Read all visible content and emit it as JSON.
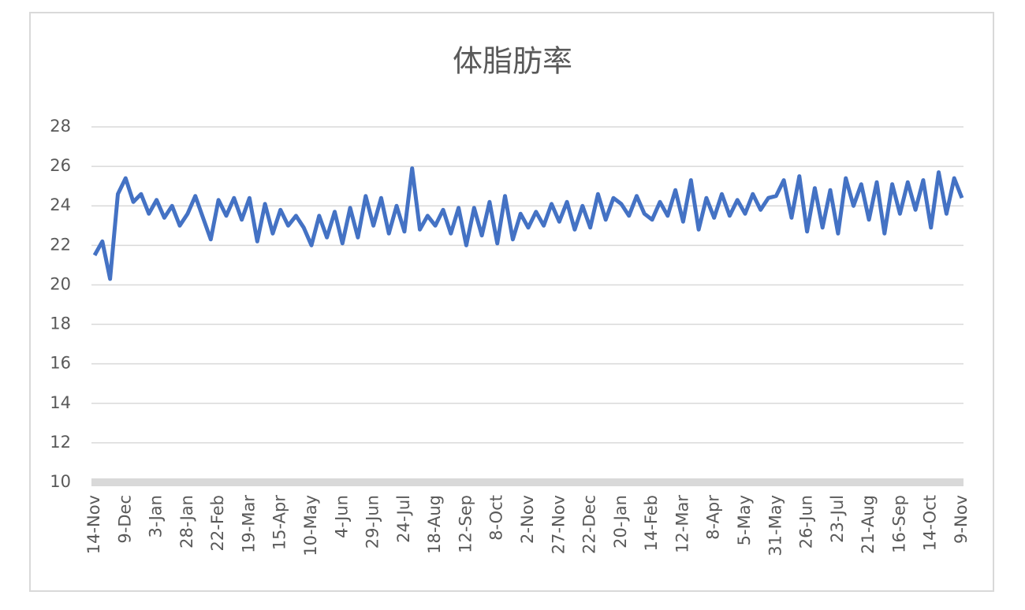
{
  "chart_data": {
    "type": "line",
    "title": "体脂肪率",
    "categories": [
      "14-Nov",
      null,
      null,
      null,
      "9-Dec",
      null,
      null,
      null,
      "3-Jan",
      null,
      null,
      null,
      "28-Jan",
      null,
      null,
      null,
      "22-Feb",
      null,
      null,
      null,
      "19-Mar",
      null,
      null,
      null,
      "15-Apr",
      null,
      null,
      null,
      "10-May",
      null,
      null,
      null,
      "4-Jun",
      null,
      null,
      null,
      "29-Jun",
      null,
      null,
      null,
      "24-Jul",
      null,
      null,
      null,
      "18-Aug",
      null,
      null,
      null,
      "12-Sep",
      null,
      null,
      null,
      "8-Oct",
      null,
      null,
      null,
      "2-Nov",
      null,
      null,
      null,
      "27-Nov",
      null,
      null,
      null,
      "22-Dec",
      null,
      null,
      null,
      "20-Jan",
      null,
      null,
      null,
      "14-Feb",
      null,
      null,
      null,
      "12-Mar",
      null,
      null,
      null,
      "8-Apr",
      null,
      null,
      null,
      "5-May",
      null,
      null,
      null,
      "31-May",
      null,
      null,
      null,
      "26-Jun",
      null,
      null,
      null,
      "23-Jul",
      null,
      null,
      null,
      "21-Aug",
      null,
      null,
      null,
      "16-Sep",
      null,
      null,
      null,
      "14-Oct",
      null,
      null,
      null,
      "9-Nov"
    ],
    "values": [
      21.5,
      22.2,
      20.3,
      24.6,
      25.4,
      24.2,
      24.6,
      23.6,
      24.3,
      23.4,
      24.0,
      23.0,
      23.6,
      24.5,
      23.4,
      22.3,
      24.3,
      23.5,
      24.4,
      23.3,
      24.4,
      22.2,
      24.1,
      22.6,
      23.8,
      23.0,
      23.5,
      22.9,
      22.0,
      23.5,
      22.4,
      23.7,
      22.1,
      23.9,
      22.4,
      24.5,
      23.0,
      24.4,
      22.6,
      24.0,
      22.7,
      25.9,
      22.8,
      23.5,
      23.0,
      23.8,
      22.6,
      23.9,
      22.0,
      23.9,
      22.5,
      24.2,
      22.1,
      24.5,
      22.3,
      23.6,
      22.9,
      23.7,
      23.0,
      24.1,
      23.2,
      24.2,
      22.8,
      24.0,
      22.9,
      24.6,
      23.3,
      24.4,
      24.1,
      23.5,
      24.5,
      23.6,
      23.3,
      24.2,
      23.5,
      24.8,
      23.2,
      25.3,
      22.8,
      24.4,
      23.4,
      24.6,
      23.5,
      24.3,
      23.6,
      24.6,
      23.8,
      24.4,
      24.5,
      25.3,
      23.4,
      25.5,
      22.7,
      24.9,
      22.9,
      24.8,
      22.6,
      25.4,
      24.0,
      25.1,
      23.3,
      25.2,
      22.6,
      25.1,
      23.6,
      25.2,
      23.8,
      25.3,
      22.9,
      25.7,
      23.6,
      25.4,
      24.4
    ],
    "color": "#4472c4",
    "ylim": [
      10,
      28
    ],
    "yticks": [
      10,
      12,
      14,
      16,
      18,
      20,
      22,
      24,
      26,
      28
    ],
    "grid": true
  }
}
